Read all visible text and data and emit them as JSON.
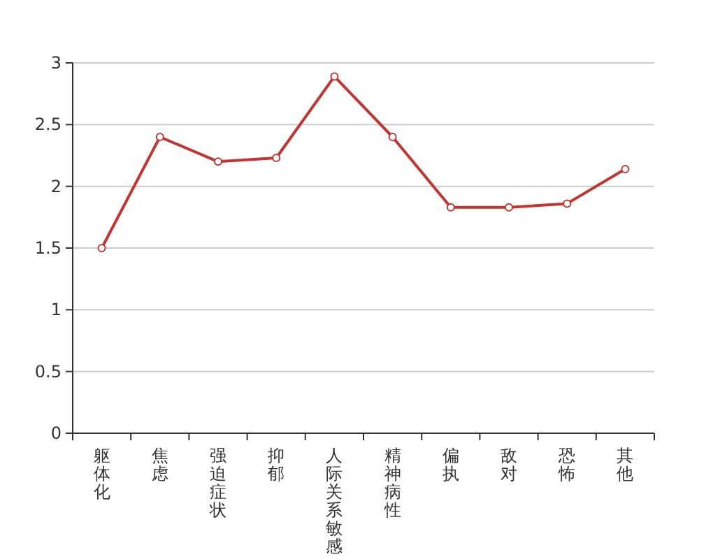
{
  "chart_data": {
    "type": "line",
    "categories": [
      "躯体化",
      "焦虑",
      "强迫症状",
      "抑郁",
      "人际关系敏感",
      "精神病性",
      "偏执",
      "敌对",
      "恐怖",
      "其他"
    ],
    "series": [
      {
        "color": "#c23531",
        "values": [
          1.5,
          2.4,
          2.2,
          2.23,
          2.89,
          2.4,
          1.83,
          1.83,
          1.86,
          2.14
        ]
      }
    ],
    "ylim": [
      0,
      3
    ],
    "yticks": [
      0,
      0.5,
      1,
      1.5,
      2,
      2.5,
      3
    ],
    "grid": "y",
    "marker": "circle",
    "line_style": "solid"
  }
}
